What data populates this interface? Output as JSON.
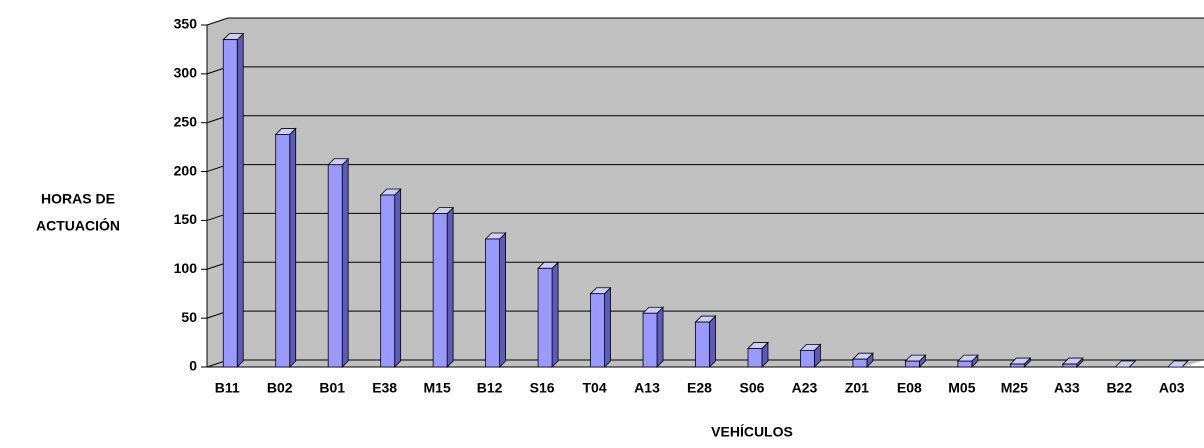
{
  "chart_data": {
    "type": "bar",
    "x_label": "VEHÍCULOS",
    "y_label": [
      "HORAS DE",
      "ACTUACIÓN"
    ],
    "categories": [
      "B11",
      "B02",
      "B01",
      "E38",
      "M15",
      "B12",
      "S16",
      "T04",
      "A13",
      "E28",
      "S06",
      "A23",
      "Z01",
      "E08",
      "M05",
      "M25",
      "A33",
      "B22",
      "A03"
    ],
    "values": [
      335,
      238,
      207,
      176,
      157,
      131,
      101,
      75,
      55,
      46,
      19,
      17,
      8,
      6,
      6,
      3,
      3,
      0,
      0
    ],
    "color": "#9999ff",
    "ylim": [
      0,
      350
    ],
    "yticks": [
      0,
      50,
      100,
      150,
      200,
      250,
      300,
      350
    ],
    "grid": true
  }
}
